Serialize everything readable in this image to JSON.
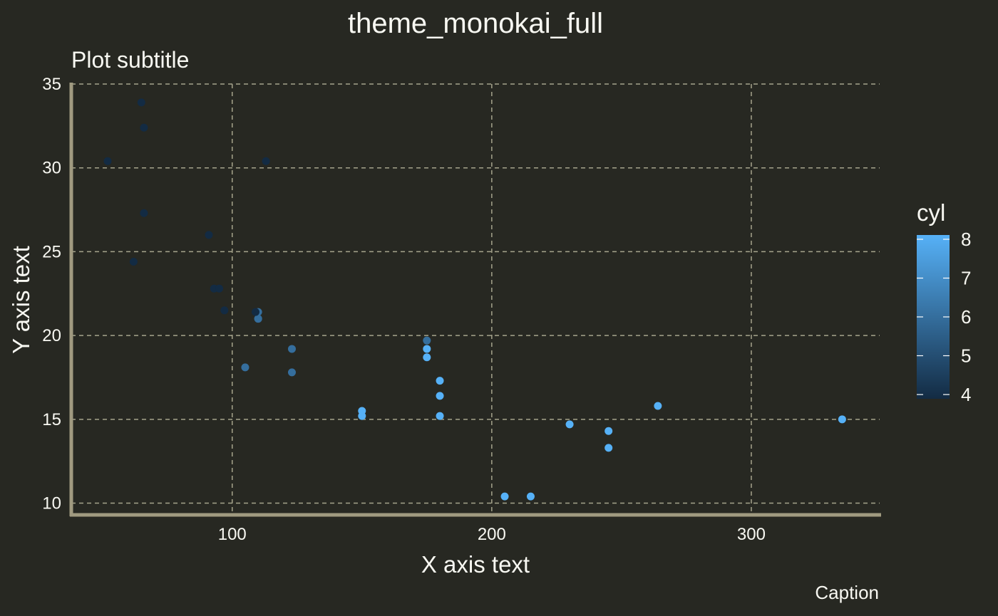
{
  "chart_data": {
    "type": "scatter",
    "title": "theme_monokai_full",
    "subtitle": "Plot subtitle",
    "xlabel": "X axis text",
    "ylabel": "Y axis text",
    "caption": "Caption",
    "xlim": [
      38,
      350
    ],
    "ylim": [
      9.3,
      35
    ],
    "x_ticks": [
      100,
      200,
      300
    ],
    "y_ticks": [
      10,
      15,
      20,
      25,
      30,
      35
    ],
    "grid": true,
    "legend": {
      "title": "cyl",
      "placement": "right",
      "ticks": [
        4,
        5,
        6,
        7,
        8
      ],
      "range": [
        4,
        8
      ],
      "color_low": "#132B43",
      "color_high": "#56B1F7"
    },
    "colors": {
      "background": "#272822",
      "text": "#F8F8F2",
      "grid": "#A6A48C",
      "axis": "#A09A80"
    },
    "points": [
      {
        "x": 110,
        "y": 21.0,
        "cyl": 6
      },
      {
        "x": 110,
        "y": 21.0,
        "cyl": 6
      },
      {
        "x": 93,
        "y": 22.8,
        "cyl": 4
      },
      {
        "x": 110,
        "y": 21.4,
        "cyl": 6
      },
      {
        "x": 175,
        "y": 18.7,
        "cyl": 8
      },
      {
        "x": 105,
        "y": 18.1,
        "cyl": 6
      },
      {
        "x": 245,
        "y": 14.3,
        "cyl": 8
      },
      {
        "x": 62,
        "y": 24.4,
        "cyl": 4
      },
      {
        "x": 95,
        "y": 22.8,
        "cyl": 4
      },
      {
        "x": 123,
        "y": 19.2,
        "cyl": 6
      },
      {
        "x": 123,
        "y": 17.8,
        "cyl": 6
      },
      {
        "x": 180,
        "y": 16.4,
        "cyl": 8
      },
      {
        "x": 180,
        "y": 17.3,
        "cyl": 8
      },
      {
        "x": 180,
        "y": 15.2,
        "cyl": 8
      },
      {
        "x": 205,
        "y": 10.4,
        "cyl": 8
      },
      {
        "x": 215,
        "y": 10.4,
        "cyl": 8
      },
      {
        "x": 230,
        "y": 14.7,
        "cyl": 8
      },
      {
        "x": 66,
        "y": 32.4,
        "cyl": 4
      },
      {
        "x": 52,
        "y": 30.4,
        "cyl": 4
      },
      {
        "x": 65,
        "y": 33.9,
        "cyl": 4
      },
      {
        "x": 97,
        "y": 21.5,
        "cyl": 4
      },
      {
        "x": 150,
        "y": 15.5,
        "cyl": 8
      },
      {
        "x": 150,
        "y": 15.2,
        "cyl": 8
      },
      {
        "x": 245,
        "y": 13.3,
        "cyl": 8
      },
      {
        "x": 175,
        "y": 19.2,
        "cyl": 8
      },
      {
        "x": 66,
        "y": 27.3,
        "cyl": 4
      },
      {
        "x": 91,
        "y": 26.0,
        "cyl": 4
      },
      {
        "x": 113,
        "y": 30.4,
        "cyl": 4
      },
      {
        "x": 264,
        "y": 15.8,
        "cyl": 8
      },
      {
        "x": 175,
        "y": 19.7,
        "cyl": 6
      },
      {
        "x": 335,
        "y": 15.0,
        "cyl": 8
      },
      {
        "x": 109,
        "y": 21.4,
        "cyl": 4
      }
    ]
  }
}
